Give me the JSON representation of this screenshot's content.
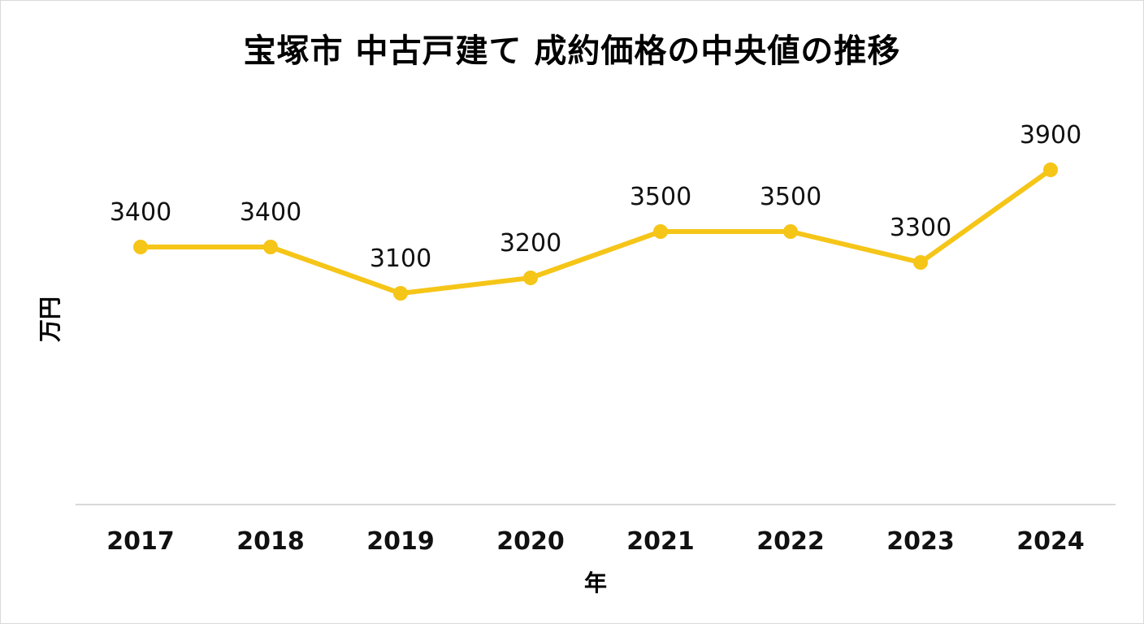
{
  "chart_data": {
    "type": "line",
    "title": "宝塚市 中古戸建て 成約価格の中央値の推移",
    "xlabel": "年",
    "ylabel": "万円",
    "categories": [
      "2017",
      "2018",
      "2019",
      "2020",
      "2021",
      "2022",
      "2023",
      "2024"
    ],
    "series": [
      {
        "values": [
          3400,
          3400,
          3100,
          3200,
          3500,
          3500,
          3300,
          3900
        ],
        "color": "#F5C518"
      }
    ],
    "data_labels": true,
    "markers": true,
    "grid": false,
    "legend": "none"
  },
  "colors": {
    "line": "#F5C518",
    "axis": "#d9d9d9",
    "text": "#111111"
  }
}
